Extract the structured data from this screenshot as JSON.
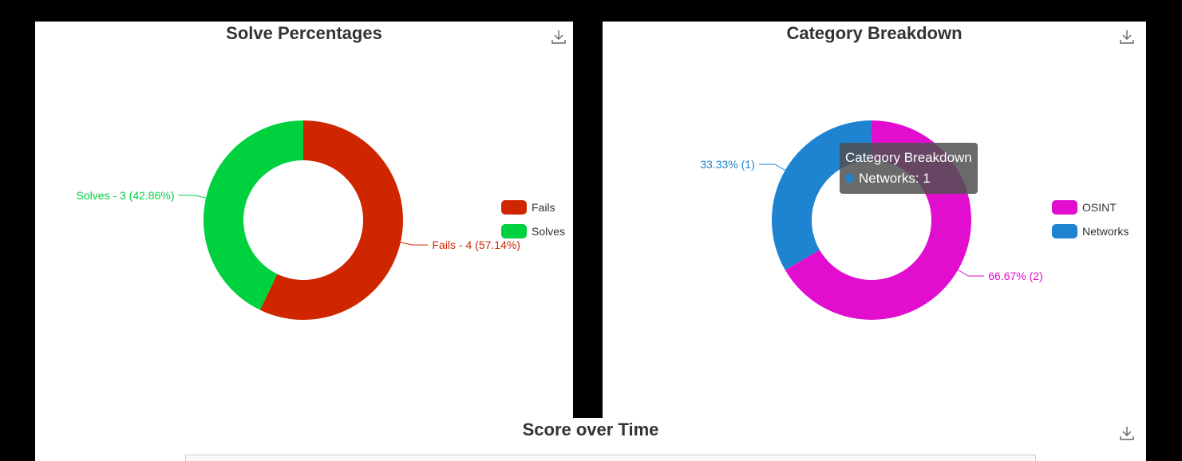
{
  "chart_data": [
    {
      "type": "pie",
      "title": "Solve Percentages",
      "donut": true,
      "slices": [
        {
          "name": "Fails",
          "value": 4,
          "percent": 57.14,
          "color": "#cf2600",
          "label": "Fails - 4 (57.14%)"
        },
        {
          "name": "Solves",
          "value": 3,
          "percent": 42.86,
          "color": "#00d13f",
          "label": "Solves - 3 (42.86%)"
        }
      ],
      "legend": {
        "position": "right",
        "items": [
          "Fails",
          "Solves"
        ]
      }
    },
    {
      "type": "pie",
      "title": "Category Breakdown",
      "donut": true,
      "slices": [
        {
          "name": "OSINT",
          "value": 2,
          "percent": 66.67,
          "color": "#e20ecf",
          "label": "66.67% (2)"
        },
        {
          "name": "Networks",
          "value": 1,
          "percent": 33.33,
          "color": "#1e83d0",
          "label": "33.33% (1)"
        }
      ],
      "legend": {
        "position": "right",
        "items": [
          "OSINT",
          "Networks"
        ]
      },
      "tooltip": {
        "title": "Category Breakdown",
        "text": "Networks: 1",
        "color": "#1e83d0"
      }
    },
    {
      "type": "line",
      "title": "Score over Time",
      "series": []
    }
  ],
  "icons": {
    "download": "download-icon"
  }
}
